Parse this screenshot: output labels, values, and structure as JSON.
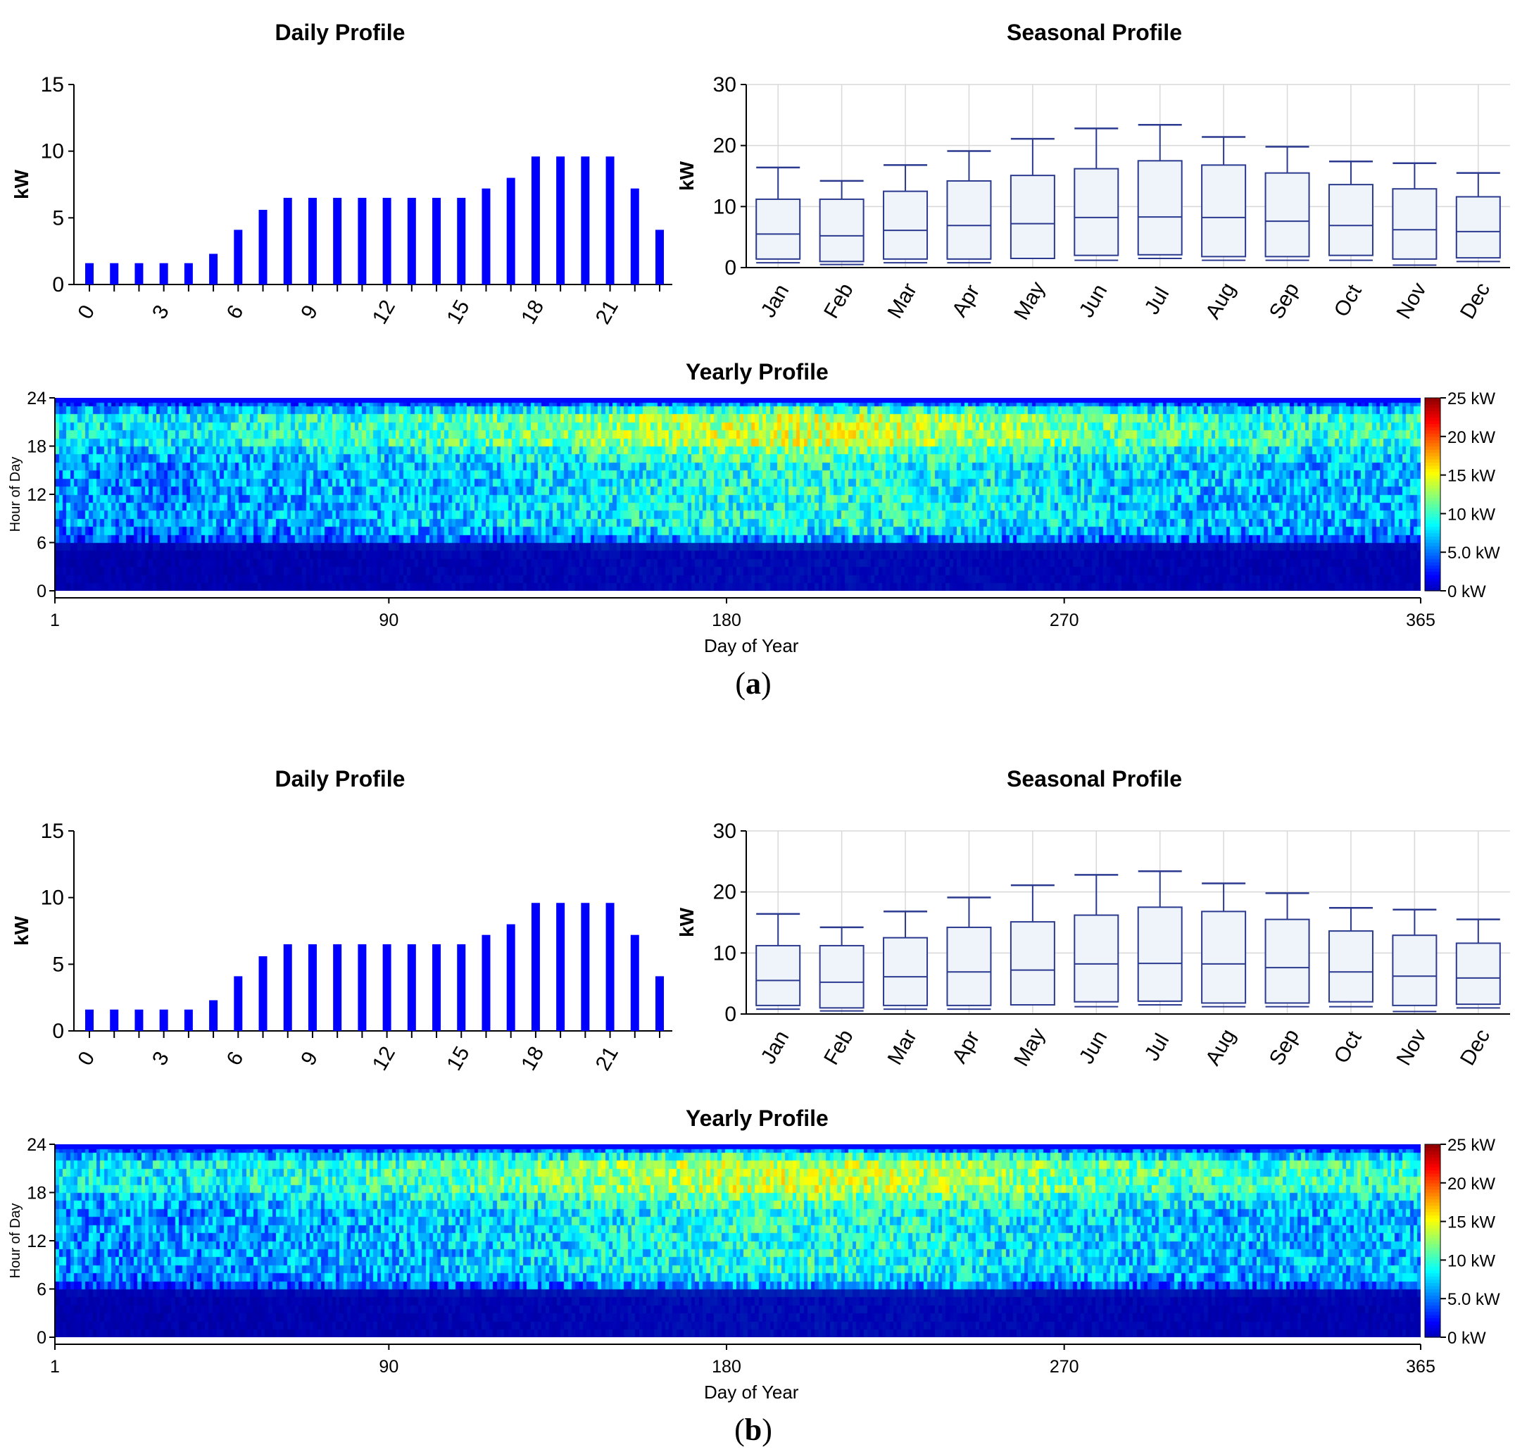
{
  "panels": [
    {
      "caption_letter": "a",
      "daily": {
        "title": "Daily Profile",
        "ylabel": "kW",
        "ylim": [
          0,
          15
        ],
        "yticks": [
          "0",
          "5",
          "10",
          "15"
        ],
        "xticks": [
          "0",
          "3",
          "6",
          "9",
          "12",
          "15",
          "18",
          "21"
        ]
      },
      "seasonal": {
        "title": "Seasonal Profile",
        "ylabel": "kW",
        "ylim": [
          0,
          30
        ],
        "yticks": [
          "0",
          "10",
          "20",
          "30"
        ]
      },
      "yearly": {
        "title": "Yearly Profile",
        "ylabel": "Hour of Day",
        "xlabel": "Day of Year",
        "yticks": [
          "0",
          "6",
          "12",
          "18",
          "24"
        ],
        "xticks": [
          "1",
          "90",
          "180",
          "270",
          "365"
        ],
        "colorbar_labels": [
          "25 kW",
          "20 kW",
          "15 kW",
          "10 kW",
          "5.0 kW",
          "0 kW"
        ]
      }
    },
    {
      "caption_letter": "b",
      "daily": {
        "title": "Daily Profile",
        "ylabel": "kW",
        "ylim": [
          0,
          15
        ],
        "yticks": [
          "0",
          "5",
          "10",
          "15"
        ],
        "xticks": [
          "0",
          "3",
          "6",
          "9",
          "12",
          "15",
          "18",
          "21"
        ]
      },
      "seasonal": {
        "title": "Seasonal Profile",
        "ylabel": "kW",
        "ylim": [
          0,
          30
        ],
        "yticks": [
          "0",
          "10",
          "20",
          "30"
        ]
      },
      "yearly": {
        "title": "Yearly Profile",
        "ylabel": "Hour of Day",
        "xlabel": "Day of Year",
        "yticks": [
          "0",
          "6",
          "12",
          "18",
          "24"
        ],
        "xticks": [
          "1",
          "90",
          "180",
          "270",
          "365"
        ],
        "colorbar_labels": [
          "25 kW",
          "20 kW",
          "15 kW",
          "10 kW",
          "5.0 kW",
          "0 kW"
        ]
      }
    }
  ],
  "chart_data": [
    {
      "type": "bar",
      "title": "Daily Profile",
      "xlabel": "",
      "ylabel": "kW",
      "ylim": [
        0,
        15
      ],
      "categories": [
        0,
        1,
        2,
        3,
        4,
        5,
        6,
        7,
        8,
        9,
        10,
        11,
        12,
        13,
        14,
        15,
        16,
        17,
        18,
        19,
        20,
        21,
        22,
        23
      ],
      "values": [
        1.6,
        1.6,
        1.6,
        1.6,
        1.6,
        2.3,
        4.1,
        5.6,
        6.5,
        6.5,
        6.5,
        6.5,
        6.5,
        6.5,
        6.5,
        6.5,
        7.2,
        8.0,
        9.6,
        9.6,
        9.6,
        9.6,
        7.2,
        4.1
      ],
      "color": "#0000ff"
    },
    {
      "type": "box",
      "title": "Seasonal Profile",
      "ylabel": "kW",
      "ylim": [
        0,
        30
      ],
      "categories": [
        "Jan",
        "Feb",
        "Mar",
        "Apr",
        "May",
        "Jun",
        "Jul",
        "Aug",
        "Sep",
        "Oct",
        "Nov",
        "Dec"
      ],
      "boxes": [
        {
          "min": 0.8,
          "low": 1.4,
          "q1": 1.4,
          "median": 5.5,
          "q3": 11.2,
          "max": 16.4
        },
        {
          "min": 0.5,
          "low": 1.0,
          "q1": 1.0,
          "median": 5.2,
          "q3": 11.2,
          "max": 14.2
        },
        {
          "min": 0.8,
          "low": 1.4,
          "q1": 1.4,
          "median": 6.1,
          "q3": 12.5,
          "max": 16.8
        },
        {
          "min": 0.8,
          "low": 1.4,
          "q1": 1.4,
          "median": 6.9,
          "q3": 14.2,
          "max": 19.1
        },
        {
          "min": 1.5,
          "low": 1.5,
          "q1": 1.5,
          "median": 7.2,
          "q3": 15.1,
          "max": 21.1
        },
        {
          "min": 1.2,
          "low": 2.0,
          "q1": 2.0,
          "median": 8.2,
          "q3": 16.2,
          "max": 22.8
        },
        {
          "min": 1.5,
          "low": 2.1,
          "q1": 2.1,
          "median": 8.3,
          "q3": 17.5,
          "max": 23.4
        },
        {
          "min": 1.2,
          "low": 1.8,
          "q1": 1.8,
          "median": 8.2,
          "q3": 16.8,
          "max": 21.4
        },
        {
          "min": 1.2,
          "low": 1.8,
          "q1": 1.8,
          "median": 7.6,
          "q3": 15.5,
          "max": 19.8
        },
        {
          "min": 1.2,
          "low": 2.0,
          "q1": 2.0,
          "median": 6.9,
          "q3": 13.6,
          "max": 17.4
        },
        {
          "min": 0.4,
          "low": 1.4,
          "q1": 1.4,
          "median": 6.2,
          "q3": 12.9,
          "max": 17.1
        },
        {
          "min": 1.0,
          "low": 1.6,
          "q1": 1.6,
          "median": 5.9,
          "q3": 11.6,
          "max": 15.5
        }
      ],
      "color": "#2b3a8f",
      "fill": "#eef4fa"
    },
    {
      "type": "heatmap",
      "title": "Yearly Profile",
      "xlabel": "Day of Year",
      "ylabel": "Hour of Day",
      "xlim": [
        1,
        365
      ],
      "ylim": [
        0,
        24
      ],
      "zlim": [
        0,
        25
      ],
      "zunit": "kW",
      "hourly_mean_kw": [
        1.6,
        1.6,
        1.6,
        1.6,
        1.6,
        2.3,
        4.1,
        5.6,
        6.5,
        6.5,
        6.5,
        6.5,
        6.5,
        6.5,
        6.5,
        6.5,
        7.2,
        8.0,
        9.6,
        9.6,
        9.6,
        9.6,
        7.2,
        4.1
      ],
      "seasonal_peak_day": 200
    }
  ]
}
